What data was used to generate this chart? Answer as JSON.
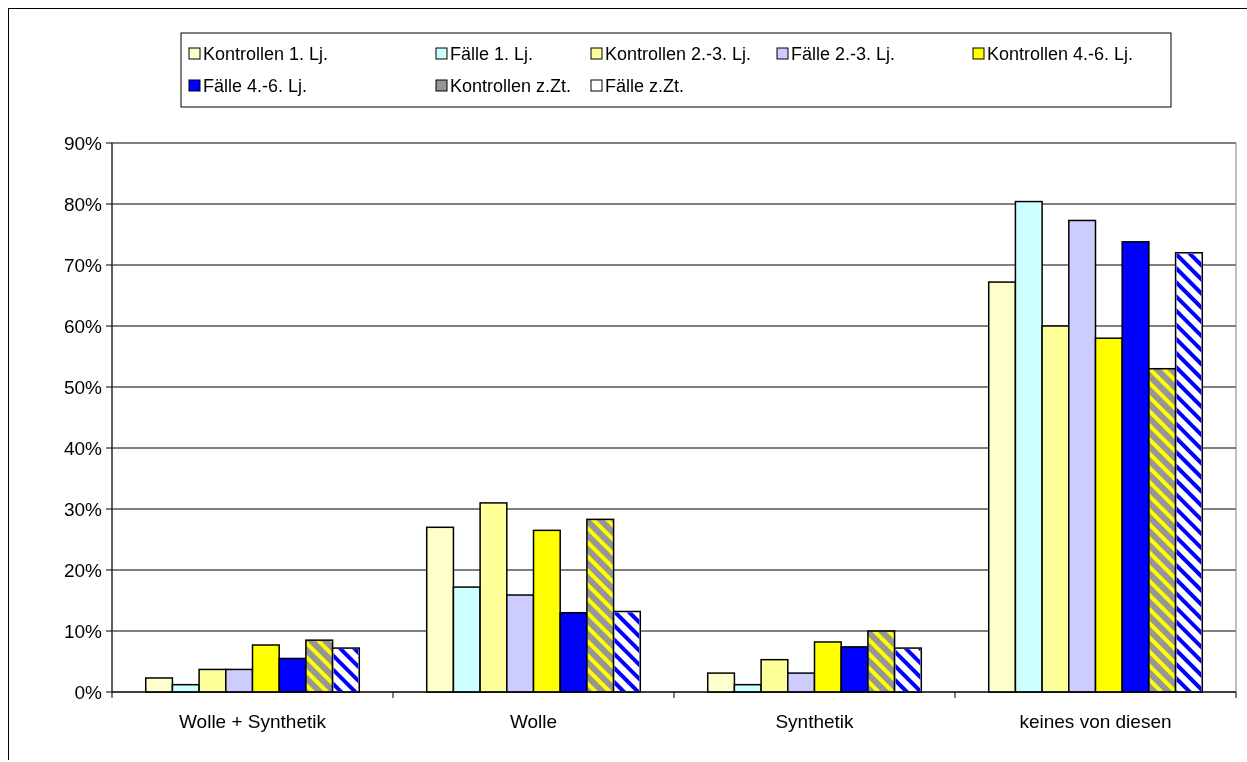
{
  "chart_data": {
    "type": "bar",
    "categories": [
      "Wolle + Synthetik",
      "Wolle",
      "Synthetik",
      "keines von diesen"
    ],
    "series": [
      {
        "name": "Kontrollen 1. Lj.",
        "color": "#ffffcc",
        "values": [
          2.3,
          27,
          3.1,
          67.2
        ]
      },
      {
        "name": "Fälle 1. Lj.",
        "color": "#ccffff",
        "values": [
          1.2,
          17.2,
          1.2,
          80.4
        ]
      },
      {
        "name": "Kontrollen 2.-3. Lj.",
        "color": "#ffff99",
        "values": [
          3.7,
          31,
          5.3,
          60
        ]
      },
      {
        "name": "Fälle 2.-3. Lj.",
        "color": "#ccccff",
        "values": [
          3.7,
          15.9,
          3.1,
          77.3
        ]
      },
      {
        "name": "Kontrollen 4.-6. Lj.",
        "color": "#ffff00",
        "values": [
          7.7,
          26.5,
          8.2,
          58
        ]
      },
      {
        "name": "Fälle 4.-6. Lj.",
        "color": "#0000ff",
        "values": [
          5.5,
          13,
          7.4,
          73.8
        ]
      },
      {
        "name": "Kontrollen z.Zt.",
        "color": "#969696",
        "values": [
          8.5,
          28.3,
          10,
          53
        ]
      },
      {
        "name": "Fälle z.Zt.",
        "color": "#ffffff",
        "values": [
          7.2,
          13.2,
          7.2,
          72
        ]
      }
    ],
    "ylim": [
      0,
      90
    ],
    "yticks": [
      {
        "value": 0,
        "label": "0%"
      },
      {
        "value": 10,
        "label": "10%"
      },
      {
        "value": 20,
        "label": "20%"
      },
      {
        "value": 30,
        "label": "30%"
      },
      {
        "value": 40,
        "label": "40%"
      },
      {
        "value": 50,
        "label": "50%"
      },
      {
        "value": 60,
        "label": "60%"
      },
      {
        "value": 70,
        "label": "70%"
      },
      {
        "value": 80,
        "label": "80%"
      },
      {
        "value": 90,
        "label": "90%"
      }
    ],
    "grid": "y",
    "legend": "top"
  }
}
